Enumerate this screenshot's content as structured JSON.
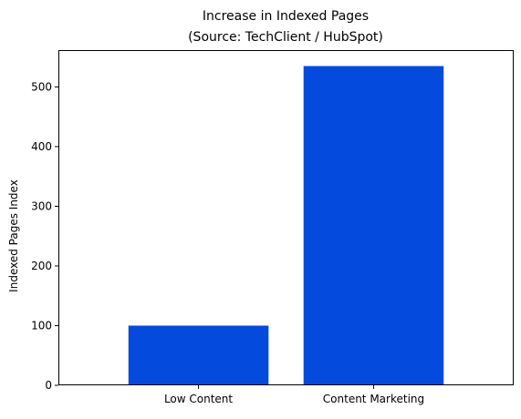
{
  "chart_data": {
    "type": "bar",
    "title": "Increase in Indexed Pages",
    "subtitle": "(Source: TechClient / HubSpot)",
    "xlabel": "",
    "ylabel": "Indexed Pages Index",
    "categories": [
      "Low Content",
      "Content Marketing"
    ],
    "values": [
      100,
      535
    ],
    "ylim": [
      0,
      561.75
    ],
    "yticks": [
      0,
      100,
      200,
      300,
      400,
      500
    ],
    "ytick_labels": [
      "0",
      "100",
      "200",
      "300",
      "400",
      "500"
    ],
    "grid": false,
    "legend": "none",
    "bar_color": "#034add"
  }
}
